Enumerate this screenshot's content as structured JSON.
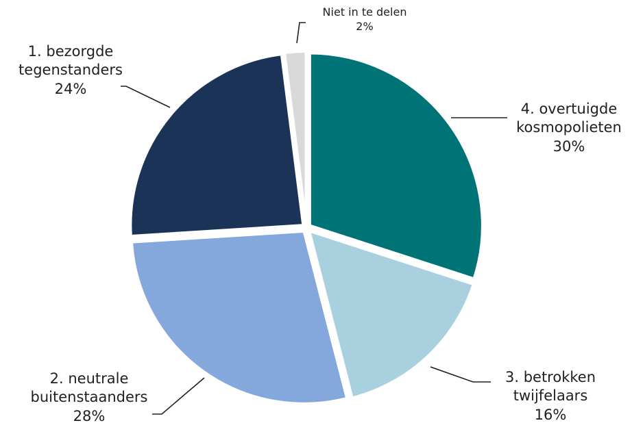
{
  "chart_data": {
    "type": "pie",
    "title": "",
    "start_angle_deg": 0,
    "direction": "clockwise",
    "slices": [
      {
        "name": "4. overtuigde kosmopolieten",
        "line1": "4. overtuigde",
        "line2": "kosmopolieten",
        "value": 30,
        "pct": "30%",
        "color": "#007377"
      },
      {
        "name": "3. betrokken twijfelaars",
        "line1": "3. betrokken",
        "line2": "twijfelaars",
        "value": 16,
        "pct": "16%",
        "color": "#a9d0df"
      },
      {
        "name": "2. neutrale buitenstaanders",
        "line1": "2. neutrale",
        "line2": "buitenstaanders",
        "value": 28,
        "pct": "28%",
        "color": "#84a8dc"
      },
      {
        "name": "1. bezorgde tegenstanders",
        "line1": "1. bezorgde",
        "line2": "tegenstanders",
        "value": 24,
        "pct": "24%",
        "color": "#1c3358"
      },
      {
        "name": "Niet in te delen",
        "line1": "Niet in te delen",
        "line2": "",
        "value": 2,
        "pct": "2%",
        "color": "#d9d9d9"
      }
    ]
  }
}
